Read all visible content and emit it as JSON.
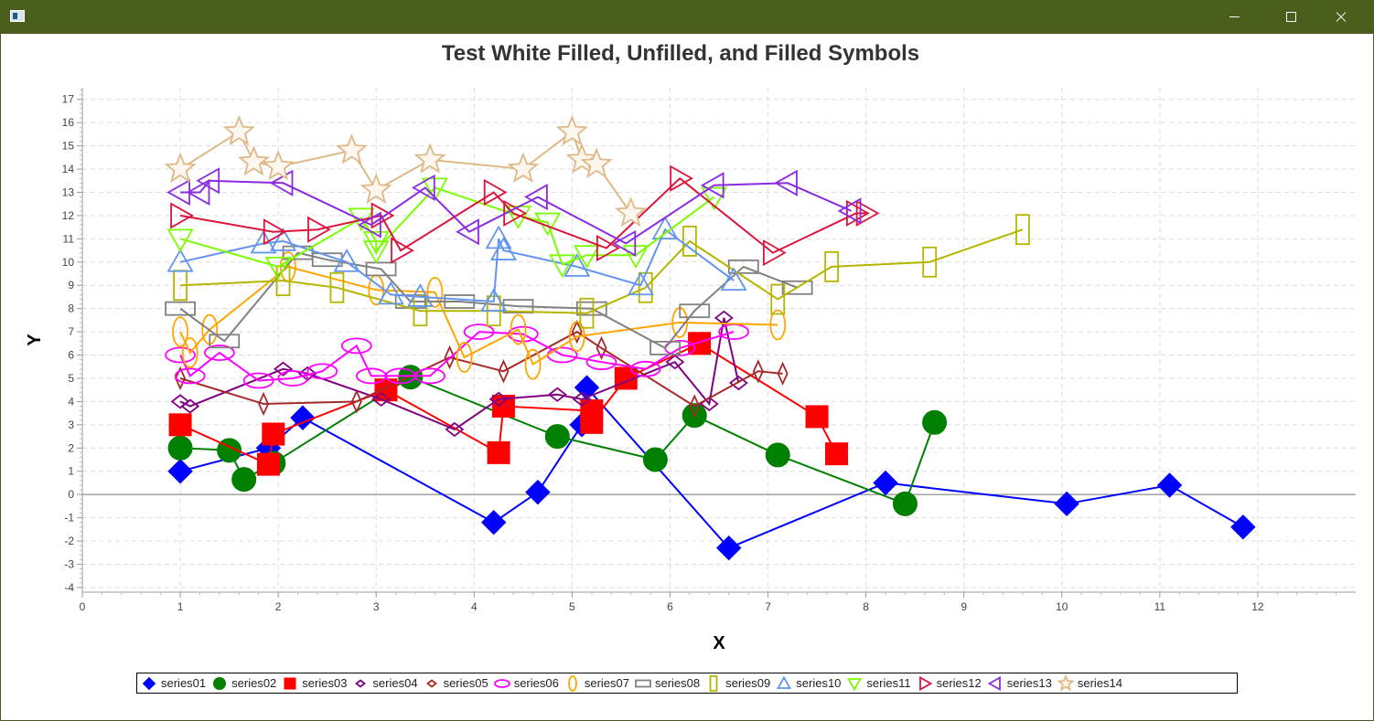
{
  "window": {
    "icon": "app-window-icon",
    "controls": [
      "minimize-icon",
      "maximize-icon",
      "close-icon"
    ]
  },
  "chart_data": {
    "type": "line",
    "title": "Test White Filled, Unfilled, and Filled Symbols",
    "xlabel": "X",
    "ylabel": "Y",
    "xlim": [
      0,
      13
    ],
    "ylim": [
      -4.2,
      17.5
    ],
    "xticks": [
      0,
      1,
      2,
      3,
      4,
      5,
      6,
      7,
      8,
      9,
      10,
      11,
      12
    ],
    "yticks": [
      -4,
      -3,
      -2,
      -1,
      0,
      1,
      2,
      3,
      4,
      5,
      6,
      7,
      8,
      9,
      10,
      11,
      12,
      13,
      14,
      15,
      16,
      17
    ],
    "grid": true,
    "legend_position": "bottom",
    "series": [
      {
        "name": "series01",
        "color": "#0000ff",
        "marker": "diamond",
        "fill": "filled",
        "points": [
          [
            1,
            1
          ],
          [
            1.9,
            2
          ],
          [
            2.25,
            3.3
          ],
          [
            4.2,
            -1.2
          ],
          [
            4.65,
            0.1
          ],
          [
            5.1,
            3
          ],
          [
            5.15,
            4.6
          ],
          [
            6.6,
            -2.3
          ],
          [
            8.2,
            0.5
          ],
          [
            10.05,
            -0.4
          ],
          [
            11.1,
            0.4
          ],
          [
            11.85,
            -1.4
          ]
        ]
      },
      {
        "name": "series02",
        "color": "#008000",
        "marker": "circle",
        "fill": "filled",
        "points": [
          [
            1,
            2
          ],
          [
            1.5,
            1.9
          ],
          [
            1.65,
            0.65
          ],
          [
            1.95,
            1.35
          ],
          [
            3.35,
            5.05
          ],
          [
            4.85,
            2.5
          ],
          [
            5.85,
            1.5
          ],
          [
            6.25,
            3.4
          ],
          [
            7.1,
            1.7
          ],
          [
            8.4,
            -0.4
          ],
          [
            8.7,
            3.1
          ]
        ]
      },
      {
        "name": "series03",
        "color": "#ff0000",
        "marker": "square",
        "fill": "filled",
        "points": [
          [
            1,
            3
          ],
          [
            1.9,
            1.3
          ],
          [
            1.95,
            2.6
          ],
          [
            3.1,
            4.5
          ],
          [
            4.25,
            1.8
          ],
          [
            4.3,
            3.8
          ],
          [
            5.2,
            3.6
          ],
          [
            5.2,
            3.1
          ],
          [
            5.55,
            5
          ],
          [
            6.3,
            6.5
          ],
          [
            7.5,
            3.35
          ],
          [
            7.7,
            1.75
          ]
        ]
      },
      {
        "name": "series04",
        "color": "#800080",
        "marker": "diamond",
        "fill": "unfilled",
        "points": [
          [
            1,
            4
          ],
          [
            1.1,
            3.8
          ],
          [
            2.05,
            5.4
          ],
          [
            2.3,
            5.2
          ],
          [
            3.05,
            4.1
          ],
          [
            3.8,
            2.8
          ],
          [
            4.25,
            4.1
          ],
          [
            4.85,
            4.3
          ],
          [
            5.1,
            4.1
          ],
          [
            6.05,
            5.7
          ],
          [
            6.4,
            3.9
          ],
          [
            6.55,
            7.6
          ],
          [
            6.7,
            4.8
          ]
        ]
      },
      {
        "name": "series05",
        "color": "#a52a2a",
        "marker": "diamond",
        "fill": "unfilled",
        "points": [
          [
            1,
            5
          ],
          [
            1.85,
            3.9
          ],
          [
            2.8,
            4
          ],
          [
            3.75,
            5.9
          ],
          [
            4.3,
            5.3
          ],
          [
            5.05,
            7
          ],
          [
            5.3,
            6.3
          ],
          [
            6.25,
            3.8
          ],
          [
            6.9,
            5.3
          ],
          [
            7.15,
            5.2
          ]
        ]
      },
      {
        "name": "series06",
        "color": "#ff00ff",
        "marker": "ellipse",
        "fill": "unfilled",
        "points": [
          [
            1,
            6
          ],
          [
            1.1,
            5.1
          ],
          [
            1.4,
            6.1
          ],
          [
            1.8,
            4.9
          ],
          [
            2.15,
            5
          ],
          [
            2.45,
            5.3
          ],
          [
            2.8,
            6.4
          ],
          [
            2.95,
            5.1
          ],
          [
            3.25,
            5.1
          ],
          [
            3.55,
            5.1
          ],
          [
            4.05,
            7
          ],
          [
            4.5,
            6.9
          ],
          [
            4.9,
            6
          ],
          [
            5.3,
            5.7
          ],
          [
            5.75,
            5.4
          ],
          [
            6.1,
            6.3
          ],
          [
            6.65,
            7
          ]
        ]
      },
      {
        "name": "series07",
        "color": "#ffa500",
        "marker": "ellipse-vertical",
        "fill": "unfilled",
        "points": [
          [
            1,
            7
          ],
          [
            1.1,
            6.1
          ],
          [
            1.3,
            7.1
          ],
          [
            2.1,
            9.8
          ],
          [
            3,
            8.8
          ],
          [
            3.6,
            8.7
          ],
          [
            3.9,
            5.9
          ],
          [
            4.45,
            7.1
          ],
          [
            4.6,
            5.6
          ],
          [
            5.05,
            6.8
          ],
          [
            6.1,
            7.4
          ],
          [
            7.1,
            7.3
          ]
        ]
      },
      {
        "name": "series08",
        "color": "#808080",
        "marker": "rectangle",
        "fill": "unfilled",
        "points": [
          [
            1,
            8
          ],
          [
            1.45,
            6.6
          ],
          [
            2.2,
            10.4
          ],
          [
            2.5,
            10.1
          ],
          [
            3.05,
            9.7
          ],
          [
            3.35,
            8.3
          ],
          [
            3.85,
            8.3
          ],
          [
            4.45,
            8.1
          ],
          [
            5.2,
            8
          ],
          [
            5.95,
            6.3
          ],
          [
            6.25,
            7.9
          ],
          [
            6.75,
            9.8
          ],
          [
            7.3,
            8.9
          ]
        ]
      },
      {
        "name": "series09",
        "color": "#b5b500",
        "marker": "rectangle-vertical",
        "fill": "unfilled",
        "points": [
          [
            1,
            9
          ],
          [
            2.05,
            9.2
          ],
          [
            2.6,
            8.9
          ],
          [
            3.45,
            7.9
          ],
          [
            4.2,
            7.9
          ],
          [
            5.15,
            7.8
          ],
          [
            5.75,
            8.9
          ],
          [
            6.2,
            10.9
          ],
          [
            7.1,
            8.4
          ],
          [
            7.65,
            9.8
          ],
          [
            8.65,
            10
          ],
          [
            9.6,
            11.4
          ]
        ]
      },
      {
        "name": "series10",
        "color": "#6495ed",
        "marker": "triangle-up",
        "fill": "unfilled",
        "points": [
          [
            1,
            10
          ],
          [
            1.85,
            10.8
          ],
          [
            2.05,
            10.9
          ],
          [
            2.7,
            10
          ],
          [
            3.15,
            8.6
          ],
          [
            3.45,
            8.5
          ],
          [
            4.2,
            8.3
          ],
          [
            4.25,
            11
          ],
          [
            4.3,
            10.5
          ],
          [
            5.05,
            9.8
          ],
          [
            5.7,
            9
          ],
          [
            5.95,
            11.4
          ],
          [
            6.65,
            9.2
          ]
        ]
      },
      {
        "name": "series11",
        "color": "#7cfc00",
        "marker": "triangle-down",
        "fill": "unfilled",
        "points": [
          [
            1,
            11
          ],
          [
            2,
            9.8
          ],
          [
            2.85,
            11.9
          ],
          [
            3,
            10.9
          ],
          [
            3,
            10.5
          ],
          [
            3.6,
            13.2
          ],
          [
            4.45,
            12
          ],
          [
            4.75,
            11.7
          ],
          [
            4.9,
            9.9
          ],
          [
            5.15,
            10.3
          ],
          [
            5.65,
            10.3
          ],
          [
            6.45,
            12.8
          ]
        ]
      },
      {
        "name": "series12",
        "color": "#dc143c",
        "marker": "triangle-right",
        "fill": "unfilled",
        "points": [
          [
            1,
            12
          ],
          [
            1.95,
            11.3
          ],
          [
            2.4,
            11.4
          ],
          [
            3.05,
            12
          ],
          [
            3.25,
            10.5
          ],
          [
            4.2,
            13
          ],
          [
            4.4,
            12.1
          ],
          [
            5.35,
            10.6
          ],
          [
            6.1,
            13.6
          ],
          [
            7.05,
            10.4
          ],
          [
            7.9,
            12.1
          ],
          [
            8,
            12.1
          ]
        ]
      },
      {
        "name": "series13",
        "color": "#8a2be2",
        "marker": "triangle-left",
        "fill": "unfilled",
        "points": [
          [
            1,
            13
          ],
          [
            1.2,
            13
          ],
          [
            1.3,
            13.5
          ],
          [
            2.05,
            13.4
          ],
          [
            2.95,
            11.6
          ],
          [
            3.5,
            13.2
          ],
          [
            3.95,
            11.3
          ],
          [
            4.65,
            12.8
          ],
          [
            5.55,
            10.8
          ],
          [
            6.45,
            13.3
          ],
          [
            7.2,
            13.4
          ],
          [
            7.85,
            12.2
          ]
        ]
      },
      {
        "name": "series14",
        "color": "#deb887",
        "marker": "star",
        "fill": "white",
        "points": [
          [
            1,
            14
          ],
          [
            1.6,
            15.6
          ],
          [
            1.75,
            14.3
          ],
          [
            2,
            14.1
          ],
          [
            2.75,
            14.8
          ],
          [
            3,
            13.1
          ],
          [
            3.55,
            14.4
          ],
          [
            4.5,
            14
          ],
          [
            5,
            15.6
          ],
          [
            5.1,
            14.4
          ],
          [
            5.25,
            14.2
          ],
          [
            5.6,
            12.1
          ]
        ]
      }
    ]
  }
}
